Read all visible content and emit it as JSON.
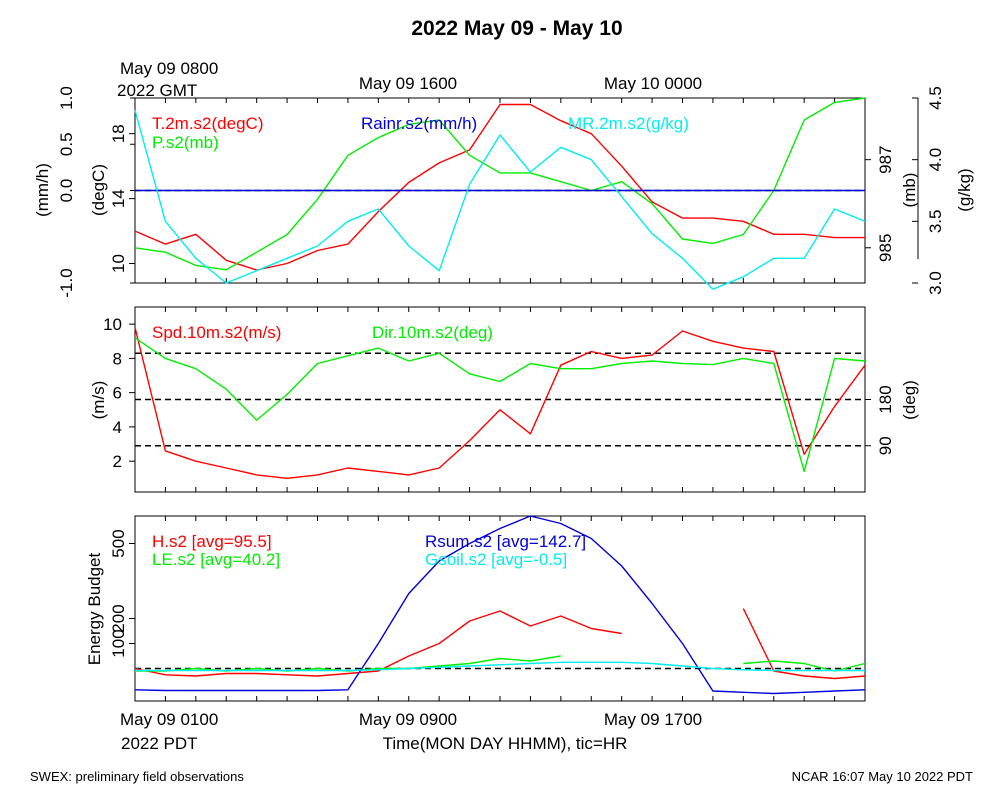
{
  "title": "2022 May 09 - May 10",
  "colors": {
    "red": "#ff0000",
    "green": "#00ee00",
    "blue": "#0000dd",
    "cyan": "#00eeee",
    "black": "#000000"
  },
  "top_time_labels": {
    "start_line1": "May 09 0800",
    "start_line2": "2022 GMT",
    "mid1": "May 09 1600",
    "mid2": "May 10 0000"
  },
  "bottom_time_labels": {
    "start_line1": "May 09 0100",
    "start_line2": "2022 PDT",
    "mid1": "May 09 0900",
    "mid2": "May 09 1700"
  },
  "xlabel": "Time(MON DAY HHMM), tic=HR",
  "footer": {
    "left": "SWEX: preliminary field observations",
    "right": "NCAR 16:07 May 10 2022 PDT"
  },
  "chart_data": [
    {
      "type": "line",
      "panel": "top",
      "xlim": [
        1,
        25
      ],
      "x_unit": "hours PDT from May 09 00:00",
      "axes": {
        "rain": {
          "label": "(mm/h)",
          "range": [
            -1.0,
            1.0
          ],
          "ticks": [
            "-1.0",
            "0.0",
            "0.5",
            "1.0"
          ],
          "tick_values": [
            -1.0,
            0.0,
            0.5,
            1.0
          ]
        },
        "temp": {
          "label": "(degC)",
          "range": [
            8.8,
            20.2
          ],
          "ticks": [
            "10",
            "14",
            "18"
          ],
          "tick_values": [
            10,
            14,
            18
          ]
        },
        "pres": {
          "label": "(mb)",
          "range": [
            984.2,
            988.4
          ],
          "ticks": [
            "985",
            "987"
          ],
          "tick_values": [
            985,
            987
          ]
        },
        "mr": {
          "label": "(g/kg)",
          "range": [
            3.0,
            4.5
          ],
          "ticks": [
            "3.0",
            "3.5",
            "4.0",
            "4.5"
          ],
          "tick_values": [
            3.0,
            3.5,
            4.0,
            4.5
          ]
        }
      },
      "series": [
        {
          "name": "T.2m.s2(degC)",
          "axis": "temp",
          "color": "red",
          "x": [
            1,
            2,
            3,
            4,
            5,
            6,
            7,
            8,
            9,
            10,
            11,
            12,
            13,
            14,
            15,
            16,
            17,
            18,
            19,
            20,
            21,
            22,
            23,
            24,
            25
          ],
          "y": [
            12.0,
            11.2,
            11.8,
            10.2,
            9.6,
            10.0,
            10.8,
            11.2,
            13.2,
            15.0,
            16.2,
            17.0,
            19.8,
            19.8,
            18.8,
            18.0,
            16.0,
            13.8,
            12.8,
            12.8,
            12.6,
            11.8,
            11.8,
            11.6,
            11.6
          ]
        },
        {
          "name": "P.s2(mb)",
          "axis": "pres",
          "color": "green",
          "x": [
            1,
            2,
            3,
            4,
            5,
            6,
            7,
            8,
            9,
            10,
            11,
            12,
            13,
            14,
            15,
            16,
            17,
            18,
            19,
            20,
            21,
            22,
            23,
            24,
            25
          ],
          "y": [
            985.0,
            984.9,
            984.6,
            984.5,
            984.9,
            985.3,
            986.1,
            987.1,
            987.5,
            987.8,
            987.9,
            987.1,
            986.7,
            986.7,
            986.5,
            986.3,
            986.5,
            986.0,
            985.2,
            985.1,
            985.3,
            986.3,
            987.9,
            988.3,
            988.4
          ]
        },
        {
          "name": "Rainr.s2(mm/h)",
          "axis": "rain",
          "color": "blue",
          "x": [
            1,
            25
          ],
          "y": [
            0.0,
            0.0
          ]
        },
        {
          "name": "MR.2m.s2(g/kg)",
          "axis": "mr",
          "color": "cyan",
          "x": [
            1,
            2,
            3,
            4,
            5,
            6,
            7,
            8,
            9,
            10,
            11,
            12,
            13,
            14,
            15,
            16,
            17,
            18,
            19,
            20,
            21,
            22,
            23,
            24,
            25
          ],
          "y": [
            4.4,
            3.5,
            3.2,
            3.0,
            3.1,
            3.2,
            3.3,
            3.5,
            3.6,
            3.3,
            3.1,
            3.8,
            4.2,
            3.9,
            4.1,
            4.0,
            3.7,
            3.4,
            3.2,
            2.95,
            3.05,
            3.2,
            3.2,
            3.6,
            3.5
          ]
        }
      ],
      "hlines": [
        {
          "axis": "rain",
          "y": 0.0,
          "style": "dashed"
        }
      ]
    },
    {
      "type": "line",
      "panel": "middle",
      "xlim": [
        1,
        25
      ],
      "x_unit": "hours PDT from May 09 00:00",
      "axes": {
        "spd": {
          "label": "(m/s)",
          "range": [
            0.2,
            11.0
          ],
          "ticks": [
            "2",
            "4",
            "6",
            "8",
            "10"
          ],
          "tick_values": [
            2,
            4,
            6,
            8,
            10
          ]
        },
        "dir": {
          "label": "(deg)",
          "range": [
            0,
            360
          ],
          "ticks": [
            "90",
            "180"
          ],
          "tick_values": [
            90,
            180
          ]
        }
      },
      "series": [
        {
          "name": "Spd.10m.s2(m/s)",
          "axis": "spd",
          "color": "red",
          "x": [
            1,
            2,
            3,
            4,
            5,
            6,
            7,
            8,
            9,
            10,
            11,
            12,
            13,
            14,
            15,
            16,
            17,
            18,
            19,
            20,
            21,
            22,
            23,
            24,
            25
          ],
          "y": [
            9.8,
            2.6,
            2.0,
            1.6,
            1.2,
            1.0,
            1.2,
            1.6,
            1.4,
            1.2,
            1.6,
            3.2,
            5.0,
            3.6,
            7.6,
            8.4,
            8.0,
            8.2,
            9.6,
            9.0,
            8.6,
            8.4,
            2.4,
            5.2,
            7.6
          ]
        },
        {
          "name": "Dir.10m.s2(deg)",
          "axis": "dir",
          "color": "green",
          "x": [
            1,
            2,
            3,
            4,
            5,
            6,
            7,
            8,
            9,
            10,
            11,
            12,
            13,
            14,
            15,
            16,
            17,
            18,
            19,
            20,
            21,
            22,
            23,
            24,
            25
          ],
          "y": [
            300,
            260,
            240,
            200,
            140,
            190,
            250,
            265,
            280,
            255,
            270,
            230,
            215,
            250,
            240,
            240,
            250,
            255,
            250,
            248,
            260,
            250,
            40,
            260,
            255
          ]
        }
      ],
      "hlines": [
        {
          "axis": "dir",
          "y": 90,
          "style": "dashed"
        },
        {
          "axis": "dir",
          "y": 180,
          "style": "dashed"
        },
        {
          "axis": "dir",
          "y": 270,
          "style": "dashed"
        }
      ]
    },
    {
      "type": "line",
      "panel": "bottom",
      "xlim": [
        1,
        25
      ],
      "x_unit": "hours PDT from May 09 00:00",
      "ylabel": "Energy Budget",
      "ylim": [
        -130,
        610
      ],
      "yticks": [
        100,
        200,
        500
      ],
      "series": [
        {
          "name": "H.s2 [avg=95.5]",
          "color": "red",
          "x": [
            1,
            2,
            3,
            4,
            5,
            6,
            7,
            8,
            9,
            10,
            11,
            12,
            13,
            14,
            15,
            16,
            17,
            18,
            19,
            20,
            21,
            22,
            23,
            24,
            25
          ],
          "y": [
            0,
            -25,
            -30,
            -20,
            -20,
            -25,
            -30,
            -20,
            -10,
            50,
            100,
            190,
            230,
            170,
            210,
            160,
            140,
            null,
            null,
            null,
            240,
            -10,
            -30,
            -40,
            -30
          ]
        },
        {
          "name": "LE.s2 [avg=40.2]",
          "color": "green",
          "x": [
            1,
            2,
            3,
            4,
            5,
            6,
            7,
            8,
            9,
            10,
            11,
            12,
            13,
            14,
            15,
            16,
            17,
            18,
            19,
            20,
            21,
            22,
            23,
            24,
            25
          ],
          "y": [
            -10,
            -10,
            0,
            -10,
            0,
            -10,
            0,
            -10,
            0,
            0,
            10,
            20,
            40,
            30,
            50,
            null,
            40,
            null,
            null,
            null,
            20,
            30,
            20,
            -10,
            20
          ]
        },
        {
          "name": "Rsum.s2 [avg=142.7]",
          "color": "blue",
          "x": [
            1,
            2,
            3,
            4,
            5,
            6,
            7,
            8,
            9,
            10,
            11,
            12,
            13,
            14,
            15,
            16,
            17,
            18,
            19,
            20,
            21,
            22,
            23,
            24,
            25
          ],
          "y": [
            -85,
            -88,
            -88,
            -88,
            -88,
            -88,
            -88,
            -85,
            100,
            300,
            430,
            500,
            560,
            610,
            580,
            520,
            410,
            260,
            100,
            -90,
            -95,
            -100,
            -95,
            -90,
            -85
          ]
        },
        {
          "name": "Gsoil.s2 [avg=-0.5]",
          "color": "cyan",
          "x": [
            1,
            2,
            3,
            4,
            5,
            6,
            7,
            8,
            9,
            10,
            11,
            12,
            13,
            14,
            15,
            16,
            17,
            18,
            19,
            20,
            21,
            22,
            23,
            24,
            25
          ],
          "y": [
            -8,
            -8,
            -8,
            -8,
            -8,
            -8,
            -8,
            -8,
            -5,
            0,
            5,
            10,
            15,
            20,
            25,
            25,
            25,
            20,
            10,
            0,
            -5,
            -8,
            -8,
            -8,
            -8
          ]
        }
      ],
      "hlines": [
        {
          "y": 0,
          "style": "dashed"
        }
      ]
    }
  ]
}
